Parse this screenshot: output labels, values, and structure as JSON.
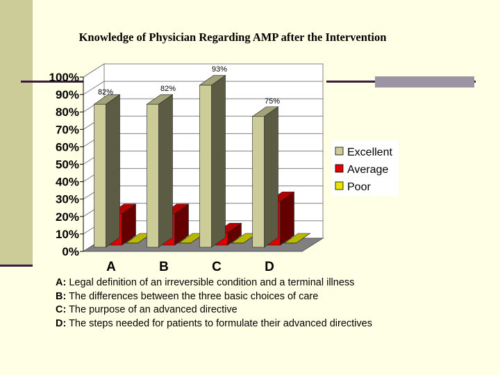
{
  "slide_title": "Knowledge of Physician Regarding AMP after the Intervention",
  "chart_data": {
    "type": "bar",
    "title": "Knowledge of Physician Regarding AMP after the Intervention",
    "categories": [
      "A",
      "B",
      "C",
      "D"
    ],
    "series": [
      {
        "name": "Excellent",
        "color": "#cccc99",
        "values": [
          82,
          82,
          93,
          75
        ]
      },
      {
        "name": "Average",
        "color": "#e00000",
        "values": [
          18,
          18,
          7,
          25
        ]
      },
      {
        "name": "Poor",
        "color": "#e6e600",
        "values": [
          0,
          0,
          0,
          0
        ]
      }
    ],
    "data_labels": {
      "Excellent": [
        "82%",
        "82%",
        "93%",
        "75%"
      ]
    },
    "yticks": [
      "0%",
      "10%",
      "20%",
      "30%",
      "40%",
      "50%",
      "60%",
      "70%",
      "80%",
      "90%",
      "100%"
    ],
    "ylim": [
      0,
      100
    ],
    "legend_position": "right",
    "style": "3d-column"
  },
  "captions": [
    {
      "key": "A:",
      "text": " Legal definition of an irreversible condition and a terminal illness"
    },
    {
      "key": "B:",
      "text": " The differences between the three basic choices of care"
    },
    {
      "key": "C:",
      "text": " The purpose of an advanced directive"
    },
    {
      "key": "D:",
      "text": " The steps needed for patients to formulate their advanced directives"
    }
  ]
}
